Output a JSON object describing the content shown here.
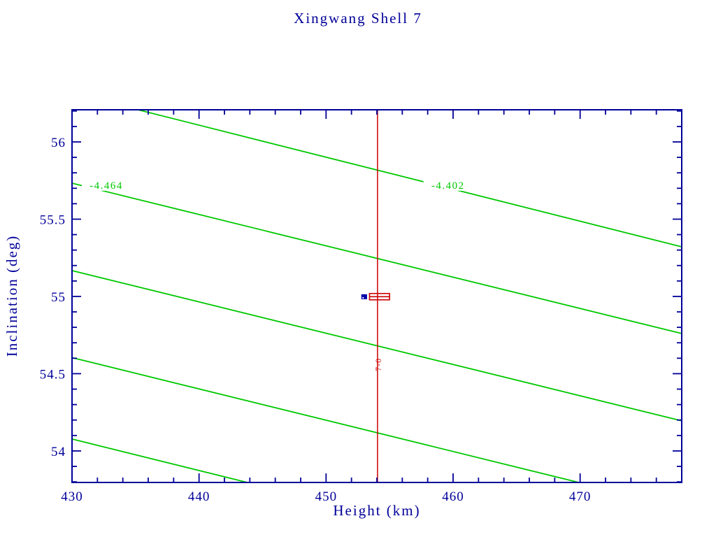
{
  "chart_data": {
    "type": "line",
    "title": "Xingwang Shell 7",
    "xlabel": "Height (km)",
    "ylabel": "Inclination (deg)",
    "xlim": [
      430,
      478
    ],
    "ylim": [
      53.796,
      56.208
    ],
    "grid": false,
    "legend": null,
    "x_major_ticks": [
      {
        "value": 430,
        "label": "430"
      },
      {
        "value": 440,
        "label": "440"
      },
      {
        "value": 450,
        "label": "450"
      },
      {
        "value": 460,
        "label": "460"
      },
      {
        "value": 470,
        "label": "470"
      }
    ],
    "x_minor_step": 2,
    "y_major_ticks": [
      {
        "value": 54,
        "label": "54"
      },
      {
        "value": 54.5,
        "label": "54.5"
      },
      {
        "value": 55,
        "label": "55"
      },
      {
        "value": 55.5,
        "label": "55.5"
      },
      {
        "value": 56,
        "label": "56"
      }
    ],
    "y_minor_step": 0.1,
    "contour_lines": [
      {
        "label": "-4.402",
        "label_x": 459.6,
        "label_y": 55.72,
        "points": [
          [
            435.2,
            56.208
          ],
          [
            478.0,
            55.321
          ]
        ]
      },
      {
        "label": "-4.464",
        "label_x": 432.7,
        "label_y": 55.72,
        "points": [
          [
            430.0,
            55.733
          ],
          [
            478.0,
            54.76
          ]
        ]
      },
      {
        "label": null,
        "points": [
          [
            430.0,
            55.167
          ],
          [
            478.0,
            54.195
          ]
        ]
      },
      {
        "label": null,
        "points": [
          [
            430.0,
            54.604
          ],
          [
            469.9,
            53.796
          ]
        ]
      },
      {
        "label": null,
        "points": [
          [
            430.0,
            54.077
          ],
          [
            443.8,
            53.796
          ]
        ]
      }
    ],
    "vline": {
      "x": 454.05,
      "label": "7-0",
      "label_x": 454.32,
      "label_y": 54.577
    },
    "markers": {
      "blue_square": {
        "x": 453.0,
        "y": 54.998,
        "width_km": 0.45,
        "height_deg": 0.032
      },
      "red_box": {
        "x_min": 453.42,
        "x_max": 455.0,
        "y_min": 54.978,
        "y_max": 55.019
      }
    },
    "colors": {
      "axis": "#000099",
      "contour": "#00c800",
      "vline": "#cc0000",
      "red_box": "#cc0000",
      "blue_marker": "#0000a8",
      "background": "#ffffff"
    }
  }
}
